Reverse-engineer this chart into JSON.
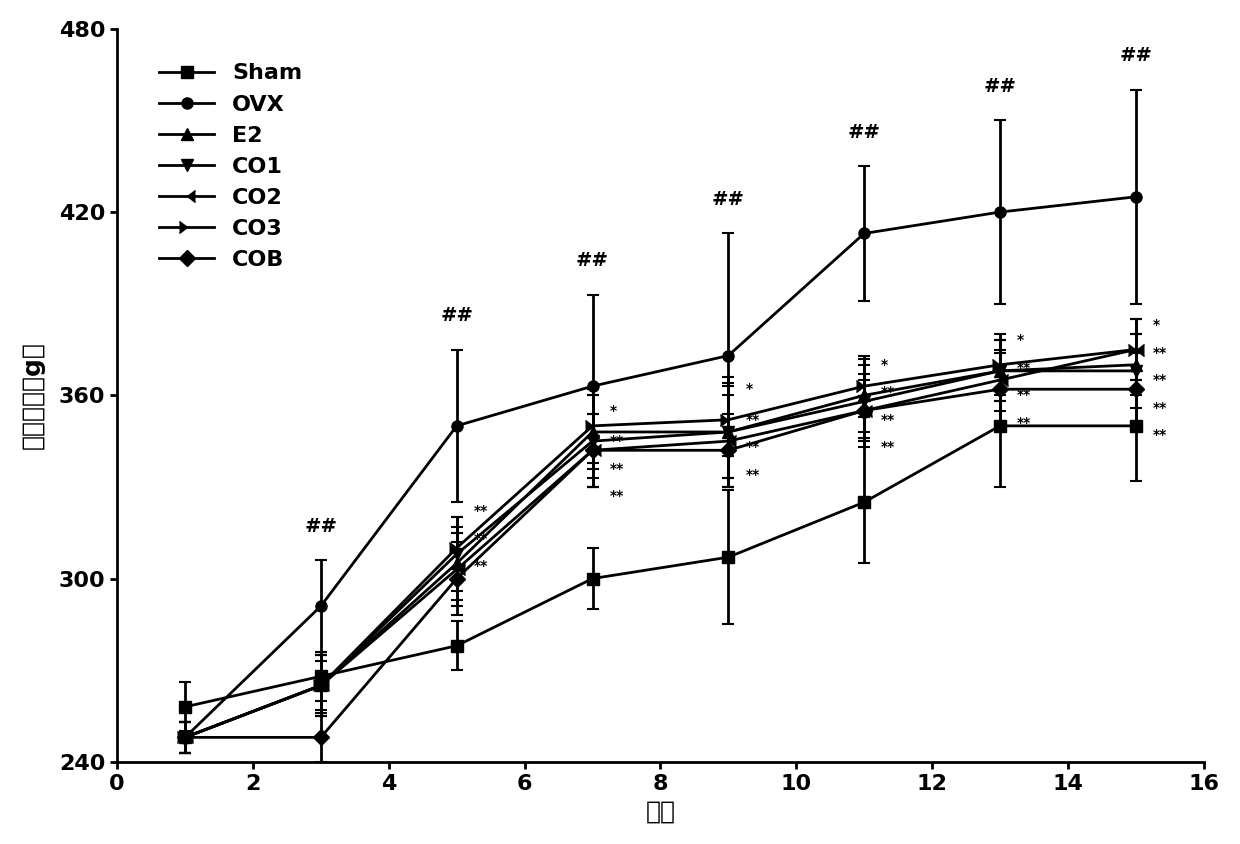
{
  "x": [
    1,
    3,
    5,
    7,
    9,
    11,
    13,
    15
  ],
  "series": {
    "Sham": {
      "y": [
        258,
        268,
        278,
        300,
        307,
        325,
        350,
        350
      ],
      "yerr": [
        8,
        8,
        8,
        10,
        22,
        20,
        20,
        18
      ],
      "marker": "s",
      "linestyle": "-"
    },
    "OVX": {
      "y": [
        248,
        291,
        350,
        363,
        373,
        413,
        420,
        425
      ],
      "yerr": [
        5,
        15,
        25,
        30,
        40,
        22,
        30,
        35
      ],
      "marker": "o",
      "linestyle": "-"
    },
    "E2": {
      "y": [
        248,
        265,
        305,
        348,
        348,
        360,
        368,
        370
      ],
      "yerr": [
        5,
        8,
        12,
        12,
        15,
        12,
        10,
        10
      ],
      "marker": "^",
      "linestyle": "-"
    },
    "CO1": {
      "y": [
        248,
        265,
        308,
        345,
        348,
        358,
        368,
        368
      ],
      "yerr": [
        5,
        10,
        12,
        15,
        18,
        12,
        10,
        12
      ],
      "marker": "v",
      "linestyle": "-"
    },
    "CO2": {
      "y": [
        248,
        265,
        303,
        342,
        345,
        355,
        365,
        375
      ],
      "yerr": [
        5,
        10,
        12,
        12,
        15,
        10,
        10,
        10
      ],
      "marker": 4,
      "linestyle": "-"
    },
    "CO3": {
      "y": [
        248,
        265,
        310,
        350,
        352,
        363,
        370,
        375
      ],
      "yerr": [
        5,
        10,
        10,
        12,
        12,
        10,
        10,
        10
      ],
      "marker": 5,
      "linestyle": "-"
    },
    "COB": {
      "y": [
        248,
        248,
        300,
        342,
        342,
        355,
        362,
        362
      ],
      "yerr": [
        5,
        8,
        12,
        12,
        12,
        12,
        12,
        12
      ],
      "marker": "D",
      "linestyle": "-"
    }
  },
  "annotations": {
    "##": [
      3,
      5,
      7,
      9,
      11,
      13,
      15
    ],
    "*": [
      11,
      13,
      15
    ],
    "**": [
      5,
      7,
      9,
      11,
      13,
      15
    ]
  },
  "xlim": [
    0,
    16
  ],
  "ylim": [
    240,
    480
  ],
  "xlabel": "周次",
  "ylabel": "大鼠体重（g）",
  "xticks": [
    0,
    2,
    4,
    6,
    8,
    10,
    12,
    14,
    16
  ],
  "yticks": [
    240,
    300,
    360,
    420,
    480
  ],
  "linewidth": 2.0,
  "markersize": 8,
  "fontsize_label": 18,
  "fontsize_tick": 16,
  "fontsize_legend": 16,
  "fontsize_annot": 14,
  "background_color": "#ffffff",
  "line_color": "#000000"
}
